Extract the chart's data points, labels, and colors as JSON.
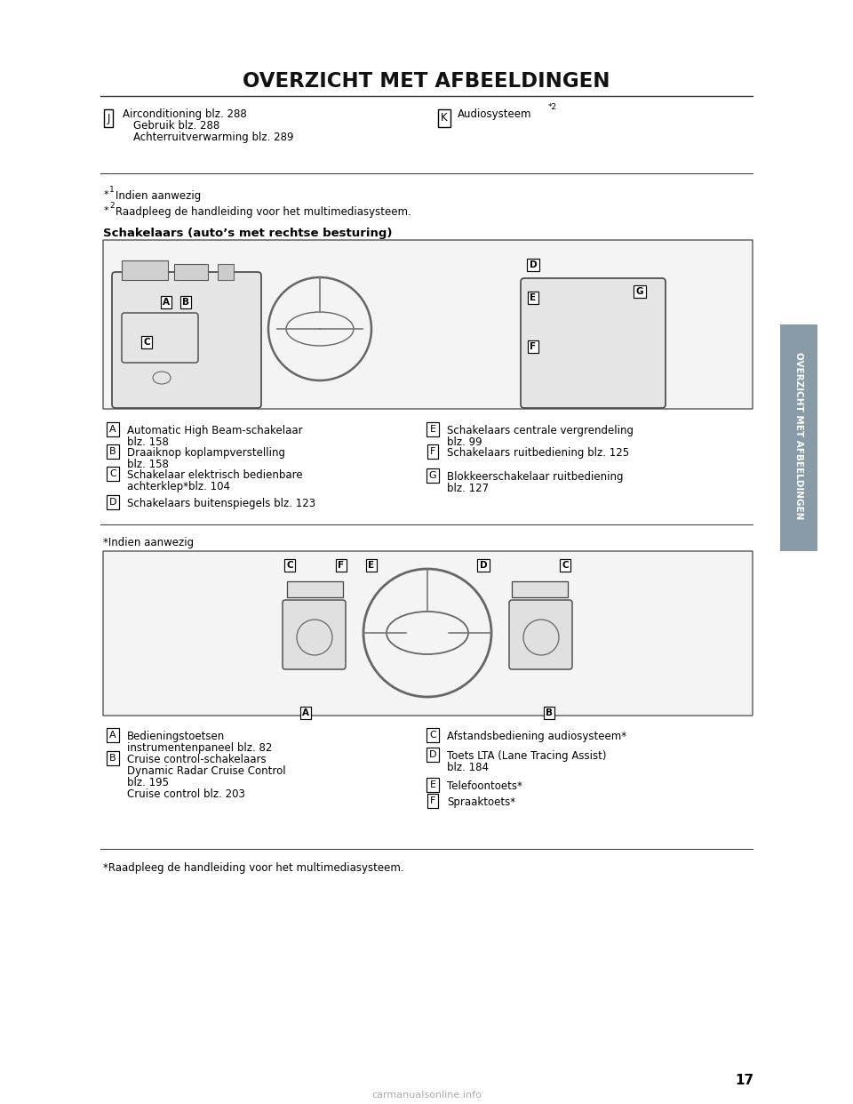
{
  "title": "OVERZICHT MET AFBEELDINGEN",
  "bg_color": "#ffffff",
  "text_color": "#000000",
  "sidebar_color": "#8a9ba8",
  "sidebar_text": "OVERZICHT MET AFBEELDINGEN",
  "page_number": "17",
  "top_table_j_lines": [
    "Airconditioning blz. 288",
    "Gebruik blz. 288",
    "Achterruitverwarming blz. 289"
  ],
  "top_table_k_line": "Audiosysteem",
  "top_table_k_sup": "*2",
  "footnote1_text": "Indien aanwezig",
  "footnote2_text": "Raadpleeg de handleiding voor het multimediasysteem.",
  "section1_title": "Schakelaars (auto’s met rechtse besturing)",
  "s1_left": [
    {
      "label": "A",
      "text": "Automatic High Beam-schakelaar\nblz. 158"
    },
    {
      "label": "B",
      "text": "Draaiknop koplampverstelling\nblz. 158"
    },
    {
      "label": "C",
      "text": "Schakelaar elektrisch bedienbare\nachterklep*blz. 104"
    },
    {
      "label": "D",
      "text": "Schakelaars buitenspiegels blz. 123"
    }
  ],
  "s1_right": [
    {
      "label": "E",
      "text": "Schakelaars centrale vergrendeling\nblz. 99"
    },
    {
      "label": "F",
      "text": "Schakelaars ruitbediening blz. 125"
    },
    {
      "label": "G",
      "text": "Blokkeerschakelaar ruitbediening\nblz. 127"
    }
  ],
  "s1_footnote": "*Indien aanwezig",
  "s2_left": [
    {
      "label": "A",
      "text": "Bedieningstoetsen\ninstrumentenpaneel blz. 82"
    },
    {
      "label": "B",
      "text": "Cruise control-schakelaars\nDynamic Radar Cruise Control\nblz. 195\nCruise control blz. 203"
    }
  ],
  "s2_right": [
    {
      "label": "C",
      "text": "Afstandsbediening audiosysteem*"
    },
    {
      "label": "D",
      "text": "Toets LTA (Lane Tracing Assist)\nblz. 184"
    },
    {
      "label": "E",
      "text": "Telefoontoets*"
    },
    {
      "label": "F",
      "text": "Spraaktoets*"
    }
  ],
  "bottom_footnote": "*Raadpleeg de handleiding voor het multimediasysteem.",
  "website": "carmanualsonline.info"
}
